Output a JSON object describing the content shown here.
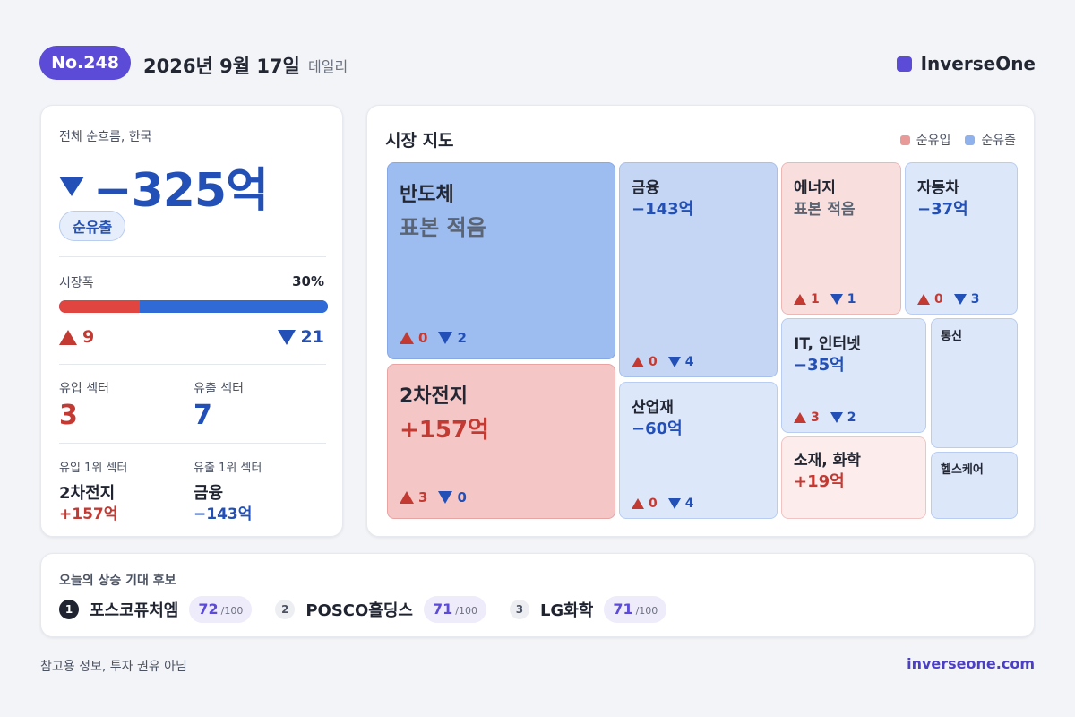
{
  "header": {
    "issue_no": "No.248",
    "date": "2026년 9월 17일",
    "edition": "데일리",
    "brand": "InverseOne"
  },
  "summary": {
    "label": "전체 순흐름, 한국",
    "net_flow": "−325억",
    "direction_badge": "순유출",
    "breadth_label": "시장폭",
    "breadth_pct": "30%",
    "breadth_fraction_up": 0.3,
    "up_count": "9",
    "down_count": "21",
    "inflow_sectors_label": "유입 섹터",
    "inflow_sectors": "3",
    "outflow_sectors_label": "유출 섹터",
    "outflow_sectors": "7",
    "top_inflow_label": "유입 1위 섹터",
    "top_inflow_name": "2차전지",
    "top_inflow_value": "+157억",
    "top_outflow_label": "유출 1위 섹터",
    "top_outflow_name": "금융",
    "top_outflow_value": "−143억"
  },
  "market_map": {
    "title": "시장 지도",
    "legend_in": "순유입",
    "legend_out": "순유출",
    "colors": {
      "inflow": "#e89a98",
      "outflow": "#8fb2ec"
    },
    "tiles": [
      {
        "name": "반도체",
        "value": "표본 적음",
        "up": "0",
        "down": "2"
      },
      {
        "name": "2차전지",
        "value": "+157억",
        "up": "3",
        "down": "0"
      },
      {
        "name": "금융",
        "value": "−143억",
        "up": "0",
        "down": "4"
      },
      {
        "name": "산업재",
        "value": "−60억",
        "up": "0",
        "down": "4"
      },
      {
        "name": "에너지",
        "value": "표본 적음",
        "up": "1",
        "down": "1"
      },
      {
        "name": "자동차",
        "value": "−37억",
        "up": "0",
        "down": "3"
      },
      {
        "name": "IT, 인터넷",
        "value": "−35억",
        "up": "3",
        "down": "2"
      },
      {
        "name": "소재, 화학",
        "value": "+19억"
      },
      {
        "name": "통신"
      },
      {
        "name": "헬스케어"
      }
    ]
  },
  "candidates": {
    "title": "오늘의 상승 기대 후보",
    "max_suffix": "/100",
    "items": [
      {
        "rank": "1",
        "name": "포스코퓨처엠",
        "score": "72"
      },
      {
        "rank": "2",
        "name": "POSCO홀딩스",
        "score": "71"
      },
      {
        "rank": "3",
        "name": "LG화학",
        "score": "71"
      }
    ]
  },
  "footer": {
    "disclaimer": "참고용 정보, 투자 권유 아님",
    "site": "inverseone.com"
  }
}
